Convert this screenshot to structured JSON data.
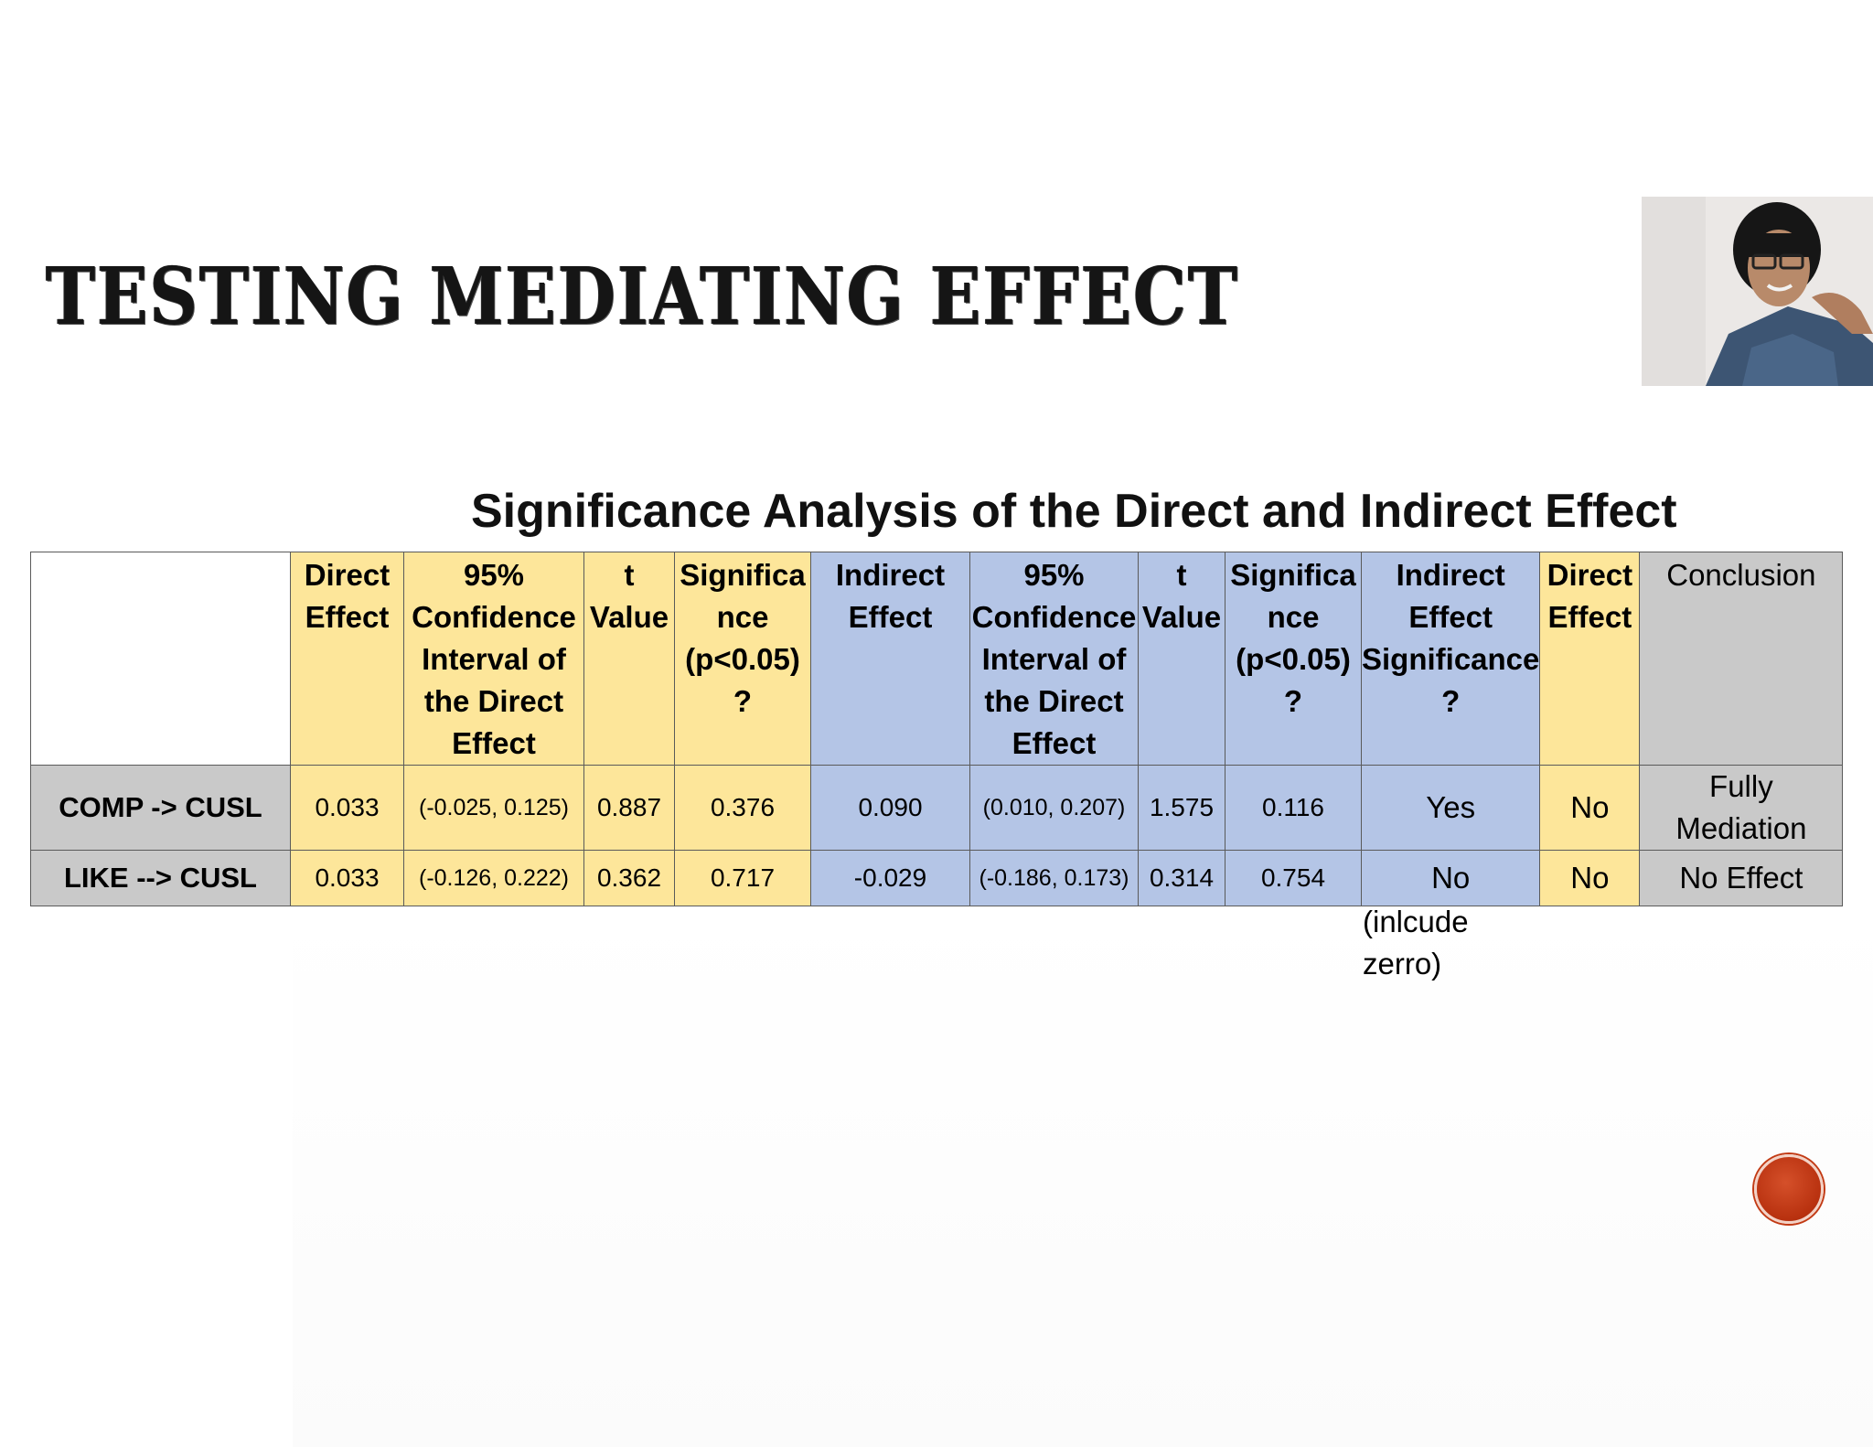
{
  "slide": {
    "title": "TESTING MEDIATING EFFECT"
  },
  "table": {
    "caption": "Significance Analysis of the Direct and Indirect Effect",
    "headers": [
      "",
      "Direct Effect",
      "95% Confidence Interval of the Direct Effect",
      "t Value",
      "Significa nce (p<0.05) ?",
      "Indirect Effect",
      "95% Confidence Interval of the Direct Effect",
      "t Value",
      "Significa nce (p<0.05) ?",
      "Indirect Effect Significance ?",
      "Direct Effect",
      "Conclusion"
    ],
    "rows": [
      {
        "label": "COMP ->  CUSL",
        "cells": [
          "0.033",
          "(-0.025, 0.125)",
          "0.887",
          "0.376",
          "0.090",
          "(0.010, 0.207)",
          "1.575",
          "0.116",
          "Yes",
          "No",
          "Fully Mediation"
        ]
      },
      {
        "label": "LIKE --> CUSL",
        "cells": [
          "0.033",
          "(-0.126, 0.222)",
          "0.362",
          "0.717",
          "-0.029",
          "(-0.186, 0.173)",
          "0.314",
          "0.754",
          "No",
          "No",
          "No Effect"
        ]
      }
    ],
    "note": "(inlcude zerro)"
  },
  "colors": {
    "direct_columns": "#fde69a",
    "indirect_columns": "#b4c5e6",
    "conclusion_column": "#c9c9c9",
    "nav_button": "#b8310f"
  },
  "icons": {
    "webcam": "presenter-webcam-thumbnail",
    "nav": "slide-nav-circle-icon"
  }
}
